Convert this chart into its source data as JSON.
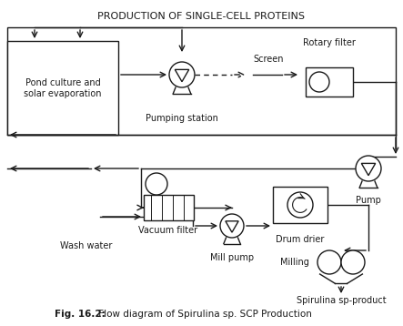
{
  "title": "PRODUCTION OF SINGLE-CELL PROTEINS",
  "caption_bold": "Fig. 16.2:",
  "caption_rest": " Flow diagram of Spirulina sp. SCP Production",
  "bg_color": "#ffffff",
  "line_color": "#1a1a1a"
}
